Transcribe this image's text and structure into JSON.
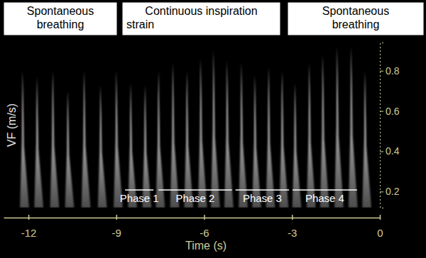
{
  "chart_data": {
    "type": "doppler",
    "x": [
      -12.2,
      -11.71,
      -11.17,
      -10.66,
      -10.1,
      -9.54,
      -9.0,
      -8.51,
      -8.02,
      -7.56,
      -7.07,
      -6.59,
      -6.12,
      -5.68,
      -5.22,
      -4.73,
      -4.27,
      -3.8,
      -3.34,
      -2.9,
      -2.41,
      -1.95,
      -1.46,
      -0.98,
      -0.51
    ],
    "values": [
      0.8,
      0.77,
      0.8,
      0.7,
      0.8,
      0.73,
      0.8,
      0.74,
      0.73,
      0.8,
      0.84,
      0.8,
      0.86,
      0.9,
      0.85,
      0.84,
      0.78,
      0.82,
      0.8,
      0.74,
      0.84,
      0.88,
      0.92,
      0.92,
      0.8
    ],
    "color": "#ffffff",
    "xlim": [
      -12.85,
      0
    ],
    "ylim": [
      0.12,
      0.94
    ],
    "xticks": [
      -12,
      -9,
      -6,
      -3,
      0
    ],
    "yticks": [
      0.2,
      0.4,
      0.6,
      0.8
    ],
    "x_label": "Time (s)",
    "y_label": "VF (m/s)",
    "sections": [
      [
        "Spontaneous",
        "breathing"
      ],
      [
        "Continuous inspiration",
        "strain"
      ],
      [
        "Spontaneous",
        "breathing"
      ]
    ],
    "phases": [
      {
        "label": "Phase 1",
        "start": -8.7,
        "end": -7.73
      },
      {
        "label": "Phase 2",
        "start": -7.56,
        "end": -5.05
      },
      {
        "label": "Phase 3",
        "start": -4.93,
        "end": -3.1
      },
      {
        "label": "Phase 4",
        "start": -2.98,
        "end": -0.78
      }
    ]
  }
}
